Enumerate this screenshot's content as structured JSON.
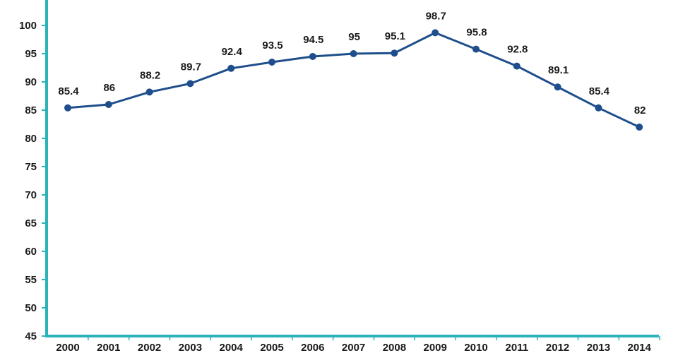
{
  "chart_data": {
    "type": "line",
    "title": "",
    "xlabel": "",
    "ylabel": "",
    "categories": [
      "2000",
      "2001",
      "2002",
      "2003",
      "2004",
      "2005",
      "2006",
      "2007",
      "2008",
      "2009",
      "2010",
      "2011",
      "2012",
      "2013",
      "2014"
    ],
    "values": [
      85.4,
      86,
      88.2,
      89.7,
      92.4,
      93.5,
      94.5,
      95,
      95.1,
      98.7,
      95.8,
      92.8,
      89.1,
      85.4,
      82
    ],
    "data_labels": [
      "85.4",
      "86",
      "88.2",
      "89.7",
      "92.4",
      "93.5",
      "94.5",
      "95",
      "95.1",
      "98.7",
      "95.8",
      "92.8",
      "89.1",
      "85.4",
      "82"
    ],
    "ylim": [
      45,
      100
    ],
    "yticks": [
      45,
      50,
      55,
      60,
      65,
      70,
      75,
      80,
      85,
      90,
      95,
      100
    ],
    "grid": false,
    "legend": "none",
    "colors": {
      "line": "#1f4e8c",
      "axis": "#2ab3b8",
      "text": "#1a1a1a"
    }
  }
}
